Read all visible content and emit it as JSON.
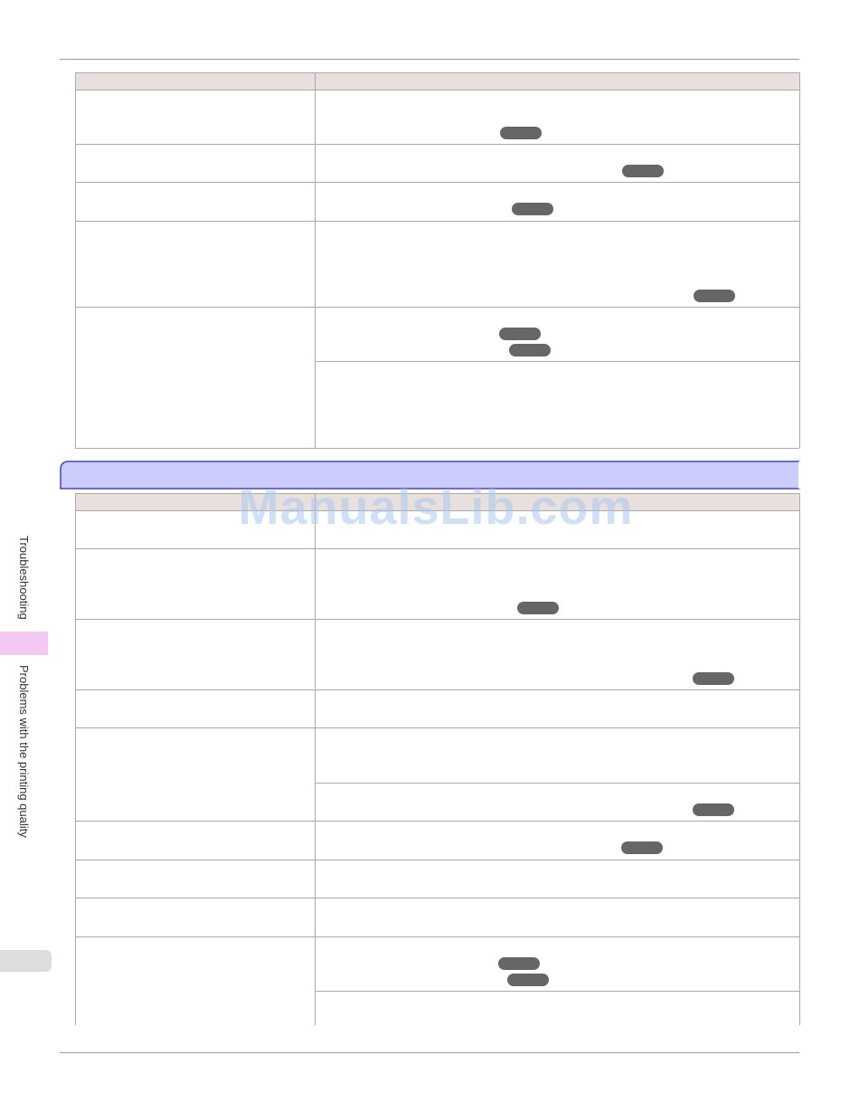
{
  "watermark": "ManualsLib.com",
  "sidebar": {
    "section": "Troubleshooting",
    "subsection": "Problems with the printing quality"
  }
}
